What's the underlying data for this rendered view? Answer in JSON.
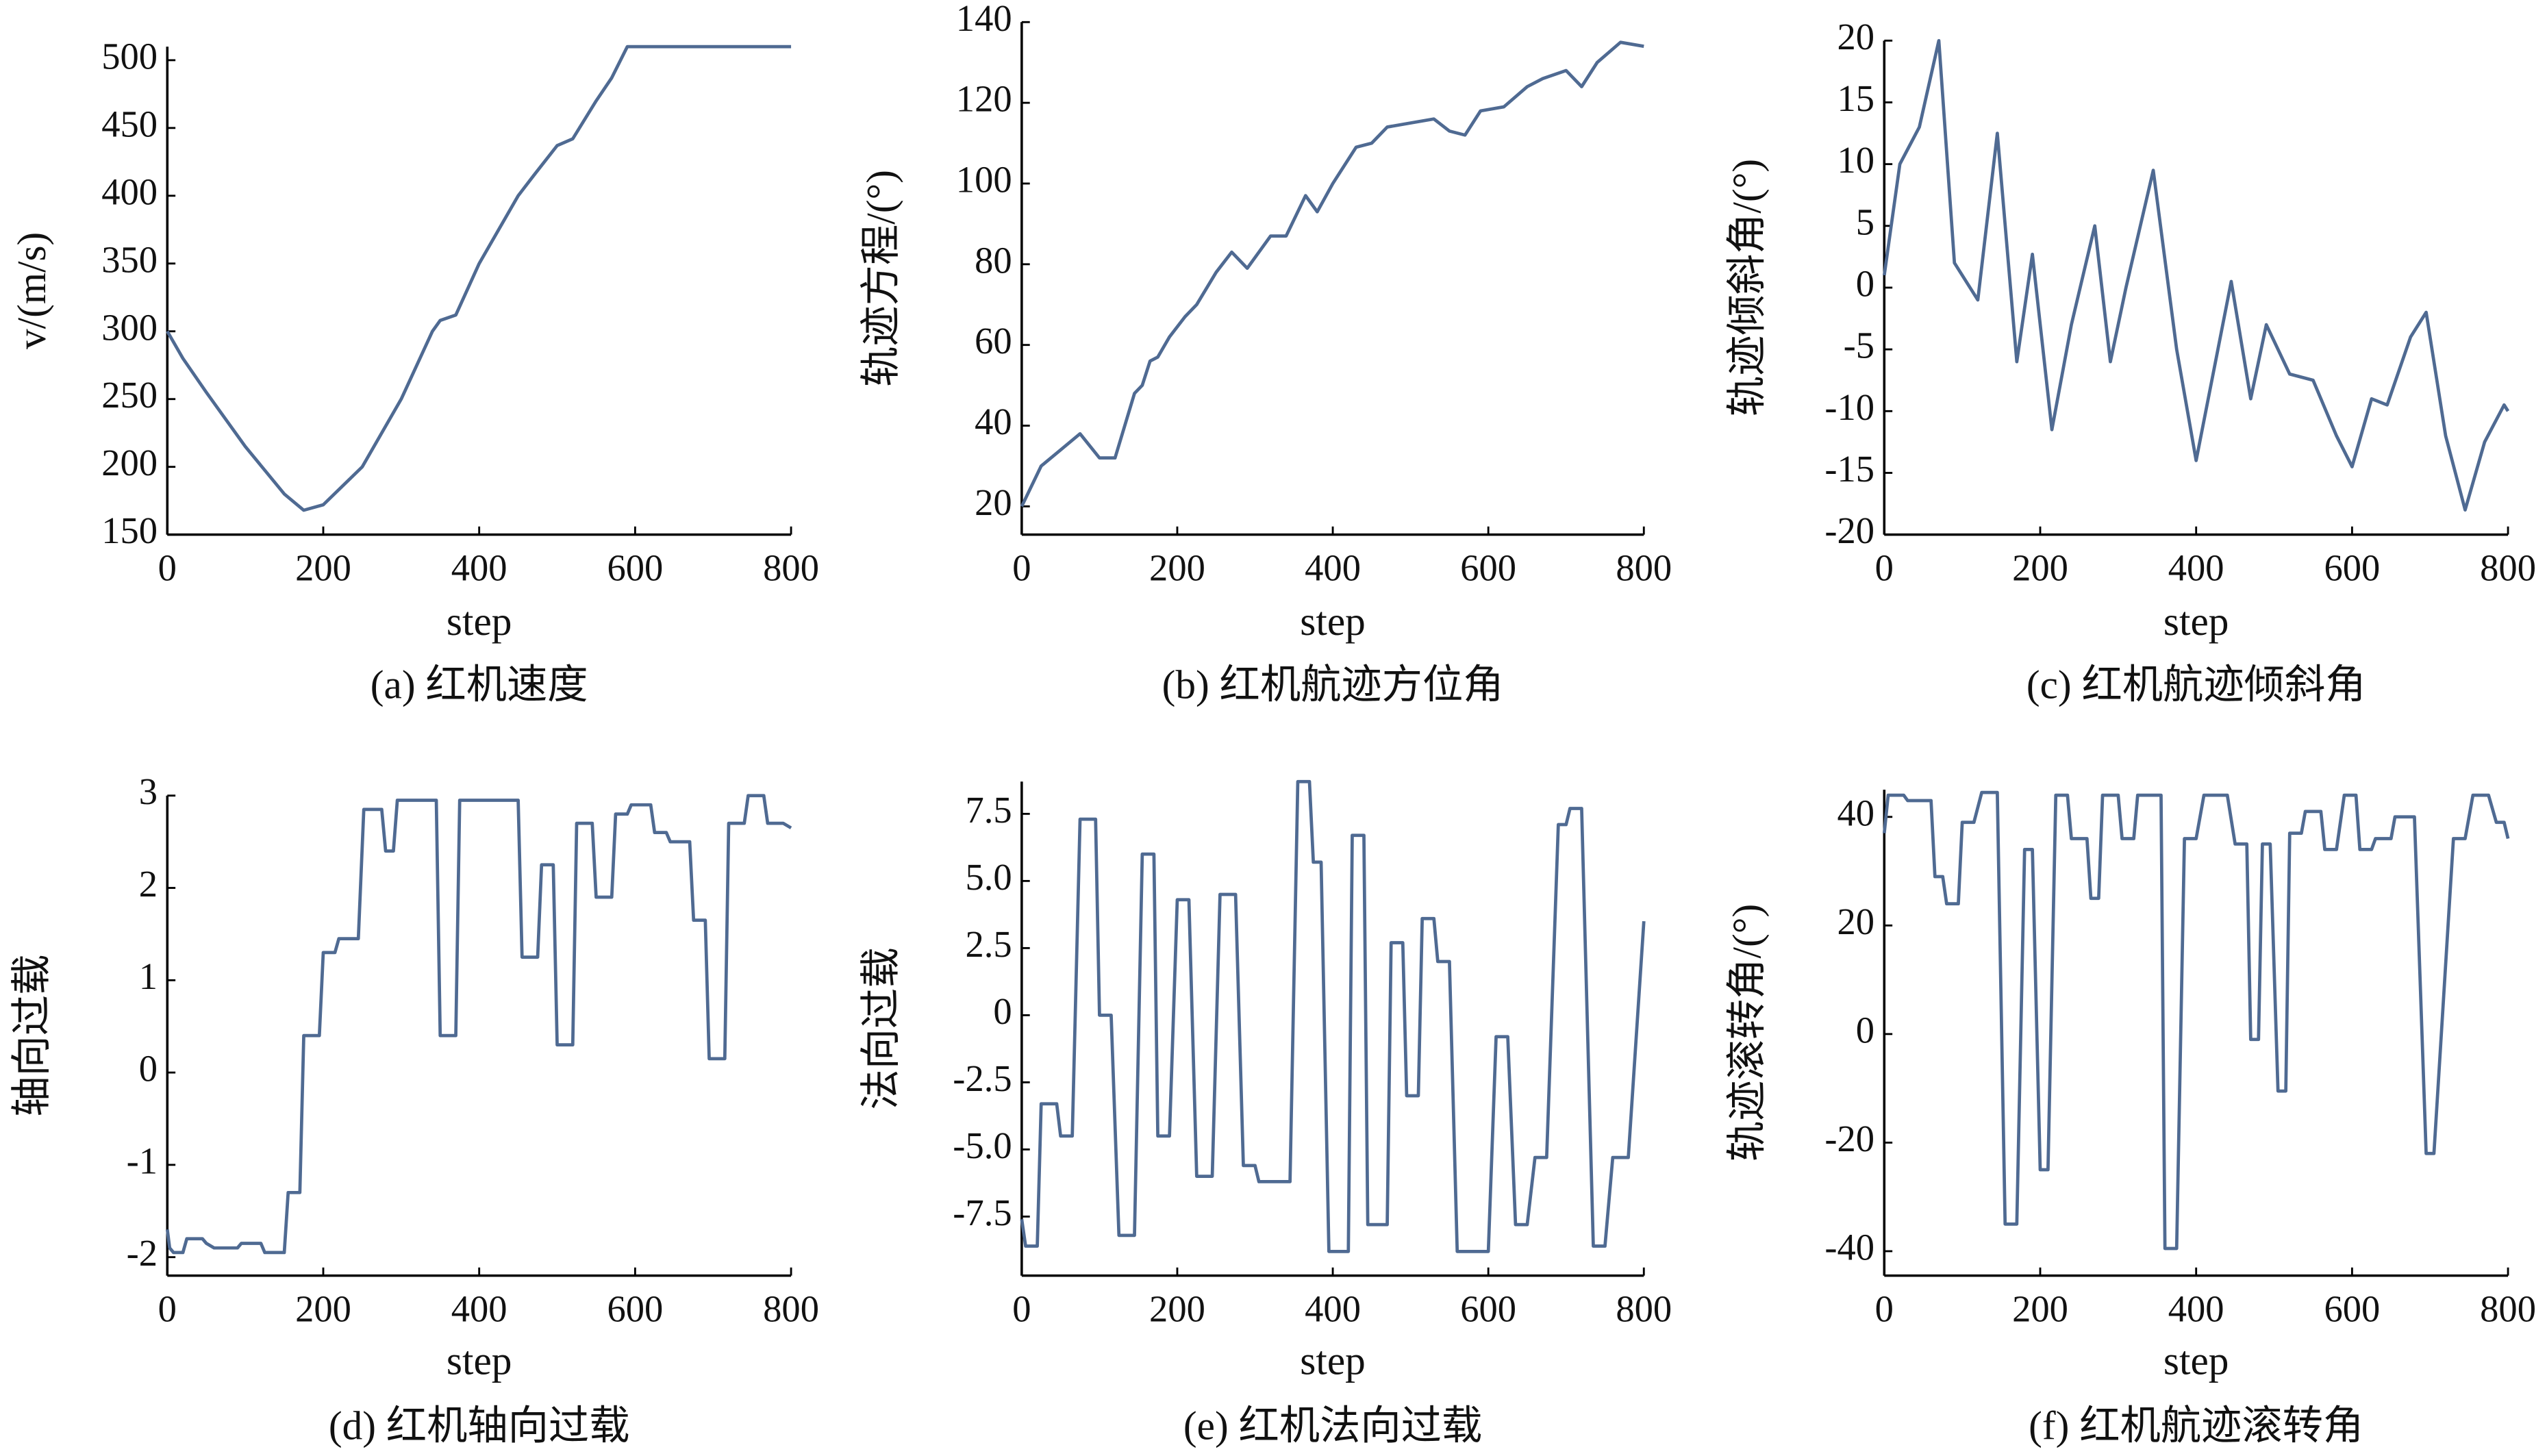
{
  "chart_data": [
    {
      "type": "line",
      "caption": "(a) 红机速度",
      "xlabel": "step",
      "ylabel": "v/(m/s)",
      "color": "#4f6a92",
      "x": [
        0,
        20,
        50,
        100,
        150,
        175,
        200,
        250,
        300,
        340,
        350,
        370,
        400,
        450,
        470,
        500,
        520,
        550,
        570,
        590,
        800
      ],
      "values": [
        300,
        280,
        255,
        215,
        180,
        168,
        172,
        200,
        250,
        300,
        308,
        312,
        350,
        400,
        415,
        437,
        442,
        470,
        487,
        510,
        510
      ],
      "xlim": [
        0,
        800
      ],
      "xticks": [
        0,
        200,
        400,
        600,
        800
      ],
      "ylim": [
        150,
        510
      ],
      "yticks": [
        150,
        200,
        250,
        300,
        350,
        400,
        450,
        500
      ]
    },
    {
      "type": "line",
      "caption": "(b) 红机航迹方位角",
      "xlabel": "step",
      "ylabel": "轨迹方程/(°)",
      "color": "#4f6a92",
      "x": [
        0,
        25,
        50,
        75,
        100,
        120,
        145,
        155,
        165,
        175,
        190,
        210,
        225,
        250,
        270,
        290,
        320,
        340,
        365,
        380,
        400,
        430,
        450,
        470,
        500,
        530,
        550,
        570,
        590,
        620,
        650,
        670,
        700,
        720,
        740,
        770,
        800
      ],
      "values": [
        20,
        30,
        34,
        38,
        32,
        32,
        48,
        50,
        56,
        57,
        62,
        67,
        70,
        78,
        83,
        79,
        87,
        87,
        97,
        93,
        100,
        109,
        110,
        114,
        115,
        116,
        113,
        112,
        118,
        119,
        124,
        126,
        128,
        124,
        130,
        135,
        134
      ],
      "xlim": [
        0,
        800
      ],
      "xticks": [
        0,
        200,
        400,
        600,
        800
      ],
      "ylim": [
        13,
        140
      ],
      "yticks": [
        20,
        40,
        60,
        80,
        100,
        120,
        140
      ]
    },
    {
      "type": "line",
      "caption": "(c) 红机航迹倾斜角",
      "xlabel": "step",
      "ylabel": "轨迹倾斜角/(°)",
      "color": "#4f6a92",
      "x": [
        0,
        20,
        45,
        70,
        90,
        120,
        145,
        170,
        190,
        215,
        240,
        270,
        290,
        310,
        345,
        375,
        400,
        445,
        470,
        490,
        520,
        550,
        580,
        600,
        625,
        645,
        675,
        695,
        720,
        745,
        770,
        795,
        800
      ],
      "values": [
        1,
        10,
        13,
        20,
        2,
        -1,
        12.5,
        -6,
        2.7,
        -11.5,
        -3,
        5,
        -6,
        0,
        9.5,
        -5,
        -14,
        0.5,
        -9,
        -3,
        -7,
        -7.5,
        -12,
        -14.5,
        -9,
        -9.5,
        -4,
        -2,
        -12,
        -18,
        -12.5,
        -9.5,
        -10
      ],
      "xlim": [
        0,
        800
      ],
      "xticks": [
        0,
        200,
        400,
        600,
        800
      ],
      "ylim": [
        -20,
        20
      ],
      "yticks": [
        -20,
        -15,
        -10,
        -5,
        0,
        5,
        10,
        15,
        20
      ]
    },
    {
      "type": "line",
      "caption": "(d) 红机轴向过载",
      "xlabel": "step",
      "ylabel": "轴向过载",
      "color": "#4f6a92",
      "x": [
        0,
        3,
        8,
        20,
        25,
        45,
        50,
        60,
        90,
        95,
        120,
        125,
        150,
        155,
        170,
        175,
        195,
        200,
        215,
        220,
        245,
        252,
        275,
        280,
        290,
        295,
        345,
        350,
        370,
        375,
        450,
        455,
        475,
        480,
        495,
        500,
        520,
        525,
        545,
        550,
        570,
        575,
        590,
        595,
        620,
        625,
        640,
        645,
        670,
        675,
        690,
        695,
        715,
        720,
        740,
        745,
        765,
        770,
        790,
        800
      ],
      "values": [
        -1.7,
        -1.9,
        -1.95,
        -1.95,
        -1.8,
        -1.8,
        -1.85,
        -1.9,
        -1.9,
        -1.85,
        -1.85,
        -1.95,
        -1.95,
        -1.3,
        -1.3,
        0.4,
        0.4,
        1.3,
        1.3,
        1.45,
        1.45,
        2.85,
        2.85,
        2.4,
        2.4,
        2.95,
        2.95,
        0.4,
        0.4,
        2.95,
        2.95,
        1.25,
        1.25,
        2.25,
        2.25,
        0.3,
        0.3,
        2.7,
        2.7,
        1.9,
        1.9,
        2.8,
        2.8,
        2.9,
        2.9,
        2.6,
        2.6,
        2.5,
        2.5,
        1.65,
        1.65,
        0.15,
        0.15,
        2.7,
        2.7,
        3.0,
        3.0,
        2.7,
        2.7,
        2.65
      ],
      "xlim": [
        0,
        800
      ],
      "xticks": [
        0,
        200,
        400,
        600,
        800
      ],
      "ylim": [
        -2.2,
        3
      ],
      "yticks": [
        -2,
        -1,
        0,
        1,
        2,
        3
      ]
    },
    {
      "type": "line",
      "caption": "(e) 红机法向过载",
      "xlabel": "step",
      "ylabel": "法向过载",
      "color": "#4f6a92",
      "x": [
        0,
        5,
        20,
        25,
        45,
        50,
        65,
        75,
        95,
        100,
        115,
        125,
        145,
        155,
        170,
        175,
        190,
        200,
        215,
        225,
        245,
        255,
        275,
        285,
        300,
        305,
        345,
        355,
        370,
        375,
        385,
        395,
        420,
        425,
        440,
        445,
        470,
        475,
        490,
        495,
        510,
        515,
        530,
        535,
        550,
        560,
        600,
        610,
        625,
        635,
        650,
        660,
        675,
        690,
        700,
        705,
        720,
        735,
        750,
        760,
        780,
        800
      ],
      "values": [
        -7.6,
        -8.6,
        -8.6,
        -3.3,
        -3.3,
        -4.5,
        -4.5,
        7.3,
        7.3,
        0,
        0,
        -8.2,
        -8.2,
        6,
        6,
        -4.5,
        -4.5,
        4.3,
        4.3,
        -6,
        -6,
        4.5,
        4.5,
        -5.6,
        -5.6,
        -6.2,
        -6.2,
        8.7,
        8.7,
        5.7,
        5.7,
        -8.8,
        -8.8,
        6.7,
        6.7,
        -7.8,
        -7.8,
        2.7,
        2.7,
        -3,
        -3,
        3.6,
        3.6,
        2,
        2,
        -8.8,
        -8.8,
        -0.8,
        -0.8,
        -7.8,
        -7.8,
        -5.3,
        -5.3,
        7.1,
        7.1,
        7.7,
        7.7,
        -8.6,
        -8.6,
        -5.3,
        -5.3,
        3.5
      ],
      "xlim": [
        0,
        800
      ],
      "xticks": [
        0,
        200,
        400,
        600,
        800
      ],
      "ylim": [
        -9.7,
        8.7
      ],
      "yticks": [
        {
          "value": -7.5,
          "label": "-7.5"
        },
        {
          "value": -5,
          "label": "-5.0"
        },
        {
          "value": -2.5,
          "label": "-2.5"
        },
        0,
        2.5,
        {
          "value": 5,
          "label": "5.0"
        },
        7.5
      ]
    },
    {
      "type": "line",
      "caption": "(f) 红机航迹滚转角",
      "xlabel": "step",
      "ylabel": "轨迹滚转角/(°)",
      "color": "#4f6a92",
      "x": [
        0,
        5,
        25,
        30,
        60,
        65,
        75,
        80,
        95,
        100,
        115,
        125,
        145,
        155,
        170,
        180,
        190,
        200,
        210,
        220,
        235,
        240,
        260,
        265,
        275,
        280,
        300,
        305,
        320,
        325,
        355,
        360,
        375,
        385,
        400,
        410,
        440,
        450,
        465,
        470,
        480,
        485,
        495,
        505,
        515,
        520,
        535,
        540,
        560,
        565,
        580,
        590,
        605,
        610,
        625,
        630,
        650,
        655,
        680,
        695,
        705,
        730,
        745,
        755,
        775,
        785,
        795,
        800
      ],
      "values": [
        37,
        44,
        44,
        43,
        43,
        29,
        29,
        24,
        24,
        39,
        39,
        44.5,
        44.5,
        -35,
        -35,
        34,
        34,
        -25,
        -25,
        44,
        44,
        36,
        36,
        25,
        25,
        44,
        44,
        36,
        36,
        44,
        44,
        -39.5,
        -39.5,
        36,
        36,
        44,
        44,
        35,
        35,
        -1,
        -1,
        35,
        35,
        -10.5,
        -10.5,
        37,
        37,
        41,
        41,
        34,
        34,
        44,
        44,
        34,
        34,
        36,
        36,
        40,
        40,
        -22,
        -22,
        36,
        36,
        44,
        44,
        39,
        39,
        36
      ],
      "xlim": [
        0,
        800
      ],
      "xticks": [
        0,
        200,
        400,
        600,
        800
      ],
      "ylim": [
        -44.5,
        45
      ],
      "yticks": [
        -40,
        -20,
        0,
        20,
        40
      ]
    }
  ]
}
